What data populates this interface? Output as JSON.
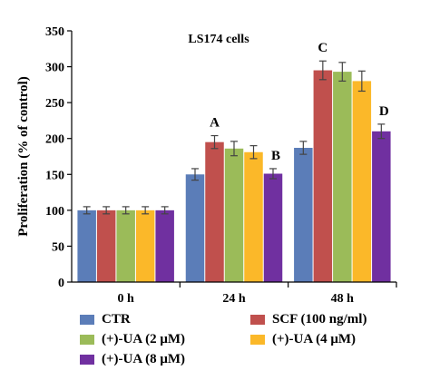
{
  "chart_data": {
    "type": "bar",
    "title": "LS174 cells",
    "ylabel": "Proliferation (% of control)",
    "xlabel": "",
    "ylim": [
      0,
      350
    ],
    "yticks": [
      "0",
      "50",
      "100",
      "150",
      "200",
      "250",
      "300",
      "350"
    ],
    "categories": [
      "0 h",
      "24 h",
      "48 h"
    ],
    "grid": false,
    "legend_position": "bottom",
    "series": [
      {
        "name": "CTR",
        "color": "#5b7db8",
        "values": [
          100,
          150,
          187
        ],
        "errors": [
          5,
          8,
          9
        ]
      },
      {
        "name": "SCF (100 ng/ml)",
        "color": "#c0504d",
        "values": [
          100,
          195,
          295
        ],
        "errors": [
          5,
          9,
          13
        ]
      },
      {
        "name": "(+)-UA (2 μM)",
        "color": "#9bbb59",
        "values": [
          100,
          186,
          293
        ],
        "errors": [
          5,
          10,
          13
        ]
      },
      {
        "name": "(+)-UA (4 μM)",
        "color": "#fbb829",
        "values": [
          100,
          181,
          280
        ],
        "errors": [
          5,
          9,
          14
        ]
      },
      {
        "name": "(+)-UA (8 μM)",
        "color": "#7030a0",
        "values": [
          100,
          151,
          210
        ],
        "errors": [
          5,
          7,
          10
        ]
      }
    ],
    "annotations": [
      {
        "text": "A",
        "category": "24 h",
        "series": "SCF (100 ng/ml)"
      },
      {
        "text": "B",
        "category": "24 h",
        "series": "(+)-UA (8 μM)"
      },
      {
        "text": "C",
        "category": "48 h",
        "series": "SCF (100 ng/ml)"
      },
      {
        "text": "D",
        "category": "48 h",
        "series": "(+)-UA (8 μM)"
      }
    ]
  }
}
